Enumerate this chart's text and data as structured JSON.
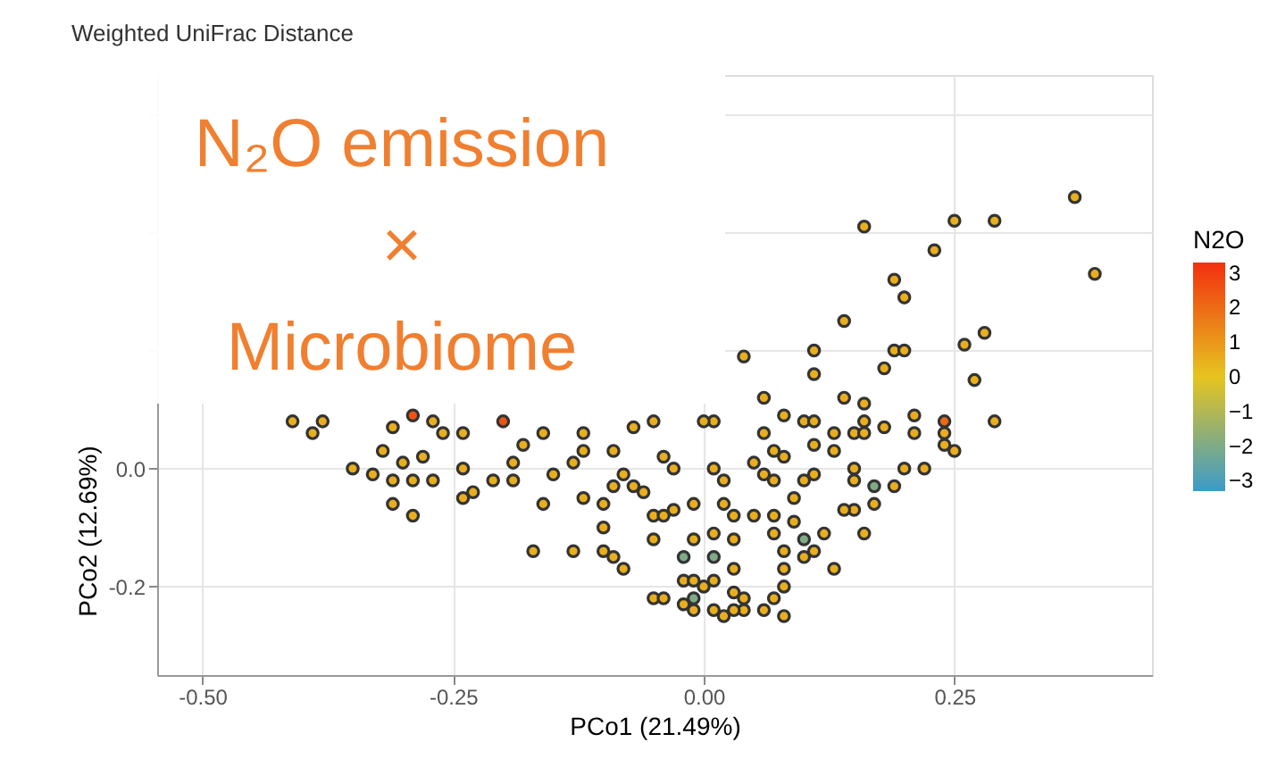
{
  "chart_data": {
    "type": "scatter",
    "title": "Weighted UniFrac Distance",
    "xlabel": "PCo1 (21.49%)",
    "ylabel": "PCo2 (12.69%)",
    "clabel": "N2O",
    "annotations": [
      "N₂O emission\n×\nMicrobiome"
    ],
    "xlim": [
      -0.545,
      0.447
    ],
    "ylim": [
      -0.35,
      0.667
    ],
    "xticks": [
      {
        "value": -0.5,
        "label": "-0.50"
      },
      {
        "value": -0.25,
        "label": "-0.25"
      },
      {
        "value": 0,
        "label": "0.00"
      },
      {
        "value": 0.25,
        "label": "0.25"
      }
    ],
    "yticks": [
      {
        "value": -0.2,
        "label": "-0.2"
      },
      {
        "value": 0,
        "label": "0.0"
      },
      {
        "value": 0.2,
        "label": null
      },
      {
        "value": 0.4,
        "label": null
      },
      {
        "value": 0.6,
        "label": null
      }
    ],
    "clim": [
      -3.3,
      3.3
    ],
    "cticks": [
      3,
      2,
      1,
      0,
      -1,
      -2,
      -3
    ],
    "grid": true,
    "marker": "circle",
    "series": [
      {
        "color": "#333333",
        "x": [
          0.37,
          0.25,
          0.29,
          0.16,
          0.23,
          0.39,
          0.19,
          0.2,
          0.14,
          0.28,
          0.26,
          0.04,
          0.11,
          0.19,
          0.2,
          0.11,
          0.18,
          0.27,
          0.06,
          0.14,
          0.16,
          -0.41,
          -0.39,
          -0.38,
          -0.31,
          -0.29,
          -0.27,
          -0.26,
          -0.24,
          -0.2,
          -0.18,
          -0.16,
          -0.12,
          -0.07,
          -0.05,
          0.01,
          -0.35,
          -0.33,
          -0.32,
          -0.3,
          -0.31,
          -0.29,
          -0.27,
          -0.28,
          -0.31,
          -0.29,
          -0.24,
          -0.24,
          -0.23,
          -0.21,
          -0.19,
          -0.19,
          -0.16,
          -0.15,
          -0.13,
          -0.12,
          -0.12,
          -0.09,
          -0.1,
          -0.1,
          -0.09,
          -0.08,
          -0.07,
          -0.06,
          -0.04,
          -0.03,
          -0.05,
          -0.04,
          -0.05,
          -0.03,
          -0.17,
          -0.13,
          -0.1,
          -0.09,
          -0.08,
          -0.02,
          -0.02,
          -0.01,
          -0.05,
          -0.04,
          -0.02,
          0.01,
          0.02,
          0.01,
          0.02,
          0.08,
          0.0,
          0.06,
          0.07,
          0.1,
          0.11,
          0.13,
          0.15,
          0.16,
          0.18,
          0.16,
          0.21,
          0.21,
          0.24,
          0.24,
          0.24,
          0.25,
          0.29,
          0.2,
          0.22,
          0.19,
          0.17,
          0.15,
          0.1,
          0.11,
          0.09,
          0.05,
          0.06,
          0.02,
          0.07,
          0.11,
          0.08,
          0.13,
          0.15,
          0.17,
          0.15,
          0.14,
          0.16,
          0.13,
          0.12,
          0.1,
          0.1,
          0.11,
          0.09,
          0.08,
          0.07,
          0.07,
          0.08,
          0.08,
          0.07,
          0.06,
          0.04,
          0.04,
          0.03,
          0.03,
          0.03,
          0.01,
          0.01,
          0.0,
          -0.01,
          -0.01,
          0.01,
          0.03,
          0.05,
          0.03,
          0.08,
          -0.01,
          -0.01
        ],
        "values": [
          0.46,
          0.42,
          0.42,
          0.41,
          0.37,
          0.33,
          0.32,
          0.29,
          0.25,
          0.23,
          0.21,
          0.19,
          0.2,
          0.2,
          0.2,
          0.16,
          0.17,
          0.15,
          0.12,
          0.12,
          0.11,
          0.08,
          0.06,
          0.08,
          0.07,
          0.09,
          0.08,
          0.06,
          0.06,
          0.08,
          0.04,
          0.06,
          0.06,
          0.07,
          0.08,
          0.08,
          0.0,
          -0.01,
          0.03,
          0.01,
          -0.02,
          -0.02,
          -0.02,
          0.02,
          -0.06,
          -0.08,
          0.0,
          -0.05,
          -0.04,
          -0.02,
          0.01,
          -0.02,
          -0.06,
          -0.01,
          0.01,
          0.03,
          -0.05,
          0.03,
          -0.06,
          -0.1,
          -0.03,
          -0.01,
          -0.03,
          -0.04,
          0.02,
          0.0,
          -0.08,
          -0.08,
          -0.12,
          -0.07,
          -0.14,
          -0.14,
          -0.14,
          -0.15,
          -0.17,
          -0.15,
          -0.19,
          -0.22,
          -0.22,
          -0.22,
          -0.23,
          -0.24,
          -0.25,
          0.0,
          -0.06,
          0.09,
          0.08,
          0.06,
          0.03,
          0.08,
          0.08,
          0.06,
          0.06,
          0.08,
          0.07,
          0.06,
          0.09,
          0.06,
          0.08,
          0.06,
          0.04,
          0.03,
          0.08,
          0.0,
          0.0,
          -0.03,
          -0.03,
          -0.02,
          -0.02,
          -0.01,
          -0.05,
          0.01,
          -0.01,
          -0.02,
          -0.02,
          0.04,
          0.02,
          0.03,
          0.0,
          -0.06,
          -0.07,
          -0.07,
          -0.11,
          -0.17,
          -0.11,
          -0.12,
          -0.15,
          -0.14,
          -0.09,
          -0.14,
          -0.11,
          -0.08,
          -0.17,
          -0.2,
          -0.22,
          -0.24,
          -0.22,
          -0.24,
          -0.21,
          -0.24,
          -0.17,
          -0.15,
          -0.19,
          -0.2,
          -0.19,
          -0.24,
          -0.11,
          -0.08,
          -0.08,
          -0.12,
          -0.25,
          -0.12,
          -0.06
        ],
        "cvalues": [
          0.5,
          0.5,
          0.5,
          0.5,
          0.5,
          0.5,
          0.5,
          0.5,
          0.5,
          0.5,
          0.5,
          0.5,
          0.5,
          0.5,
          0.5,
          0.5,
          0.5,
          0.5,
          0.5,
          0.5,
          0.5,
          0.5,
          0.5,
          0.5,
          0.5,
          2.5,
          0.5,
          0.5,
          0.5,
          2.5,
          0.5,
          0.5,
          0.5,
          0.5,
          0.5,
          0.5,
          0.5,
          0.5,
          0.5,
          0.5,
          0.5,
          0.5,
          0.5,
          0.5,
          0.5,
          0.5,
          0.5,
          0.5,
          0.5,
          0.5,
          0.5,
          0.5,
          0.5,
          0.5,
          0.5,
          0.5,
          0.5,
          0.5,
          0.5,
          0.5,
          0.5,
          0.5,
          0.5,
          0.5,
          0.5,
          0.5,
          0.5,
          0.5,
          0.5,
          0.5,
          0.5,
          0.5,
          0.5,
          0.5,
          0.5,
          -2,
          0.5,
          -2,
          0.5,
          0.5,
          0.5,
          0.5,
          0.5,
          0.5,
          0.5,
          0.5,
          0.5,
          0.5,
          0.5,
          0.5,
          0.5,
          0.5,
          0.5,
          0.5,
          0.5,
          0.5,
          0.5,
          0.5,
          2,
          0.5,
          0.5,
          0.5,
          0.5,
          0.5,
          0.5,
          0.5,
          -2,
          0.5,
          0.5,
          0.5,
          0.5,
          0.5,
          0.5,
          0.5,
          0.5,
          0.5,
          0.5,
          0.5,
          0.5,
          0.5,
          0.5,
          0.5,
          0.5,
          0.5,
          0.5,
          -2,
          0.5,
          0.5,
          0.5,
          0.5,
          0.5,
          0.5,
          0.5,
          0.5,
          0.5,
          0.5,
          0.5,
          0.5,
          0.5,
          0.5,
          0.5,
          -2,
          0.5,
          0.5,
          0.5,
          0.5,
          0.5,
          0.5,
          0.5,
          0.5,
          0.5,
          0.5,
          0.5
        ]
      }
    ]
  }
}
